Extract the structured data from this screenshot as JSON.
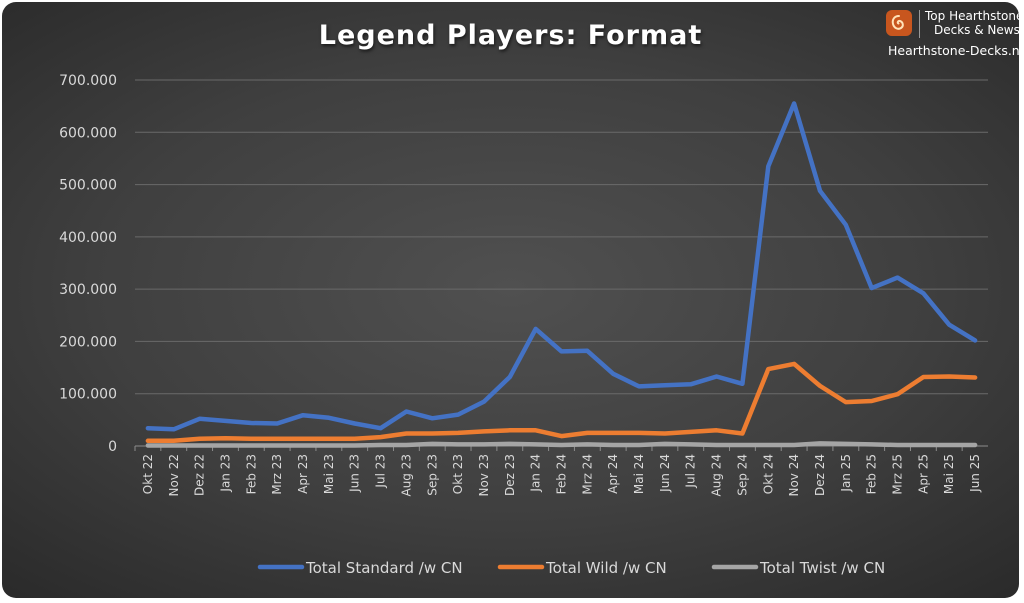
{
  "branding": {
    "line1": "Top Hearthstone",
    "line2": "Decks & News",
    "url": "Hearthstone-Decks.net"
  },
  "chart_data": {
    "type": "line",
    "title": "Legend Players: Format",
    "xlabel": "",
    "ylabel": "",
    "ylim": [
      0,
      700000
    ],
    "yticks": [
      0,
      100000,
      200000,
      300000,
      400000,
      500000,
      600000,
      700000
    ],
    "ytick_labels": [
      "0",
      "100.000",
      "200.000",
      "300.000",
      "400.000",
      "500.000",
      "600.000",
      "700.000"
    ],
    "grid": true,
    "legend_position": "bottom",
    "categories": [
      "Okt 22",
      "Nov 22",
      "Dez 22",
      "Jan 23",
      "Feb 23",
      "Mrz 23",
      "Apr 23",
      "Mai 23",
      "Jun 23",
      "Jul 23",
      "Aug 23",
      "Sep 23",
      "Okt 23",
      "Nov 23",
      "Dez 23",
      "Jan 24",
      "Feb 24",
      "Mrz 24",
      "Apr 24",
      "Mai 24",
      "Jun 24",
      "Jul 24",
      "Aug 24",
      "Sep 24",
      "Okt 24",
      "Nov 24",
      "Dez 24",
      "Jan 25",
      "Feb 25",
      "Mrz 25",
      "Apr 25",
      "Mai 25",
      "Jun 25"
    ],
    "series": [
      {
        "name": "Total Standard /w CN",
        "color": "#4472c4",
        "values": [
          34000,
          32000,
          52000,
          48000,
          44000,
          43000,
          59000,
          54000,
          43000,
          34000,
          66000,
          53000,
          60000,
          85000,
          132000,
          224000,
          181000,
          182000,
          138000,
          114000,
          116000,
          118000,
          133000,
          119000,
          535000,
          655000,
          488000,
          423000,
          302000,
          322000,
          292000,
          232000,
          202000
        ]
      },
      {
        "name": "Total Wild /w CN",
        "color": "#ed7d31",
        "values": [
          10000,
          10000,
          14000,
          15000,
          14000,
          14000,
          14000,
          14000,
          14000,
          17000,
          24000,
          24000,
          25000,
          28000,
          30000,
          30000,
          19000,
          25000,
          25000,
          25000,
          24000,
          27000,
          30000,
          24000,
          147000,
          157000,
          115000,
          84000,
          86000,
          99000,
          132000,
          133000,
          131000
        ]
      },
      {
        "name": "Total Twist /w CN",
        "color": "#a5a5a5",
        "values": [
          1000,
          1000,
          1000,
          1000,
          1000,
          1000,
          1000,
          1000,
          1000,
          2000,
          2000,
          4000,
          3000,
          3000,
          4000,
          3000,
          2000,
          3000,
          2000,
          2000,
          4000,
          3000,
          2000,
          2000,
          2000,
          2000,
          5000,
          4000,
          3000,
          2000,
          2000,
          2000,
          2000
        ]
      }
    ]
  }
}
